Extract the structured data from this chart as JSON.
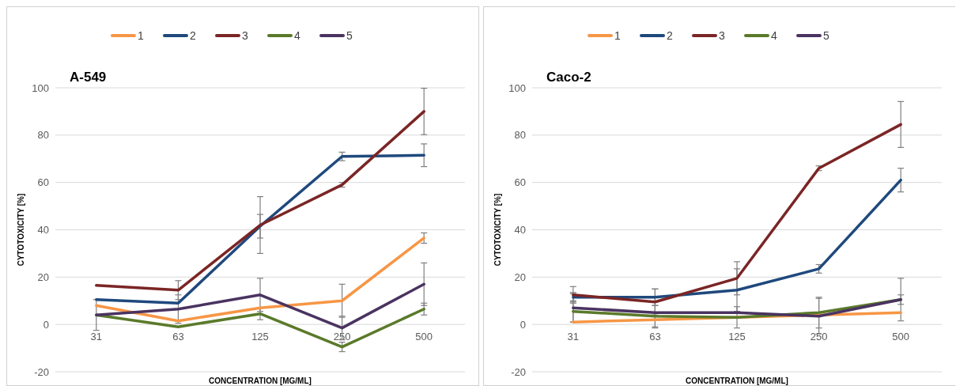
{
  "chart_data": [
    {
      "type": "line",
      "title": "A-549",
      "xlabel": "CONCENTRATION [MG/ML]",
      "ylabel": "CYTOTOXICITY [%]",
      "categories": [
        "31",
        "63",
        "125",
        "250",
        "500"
      ],
      "ylim": [
        -20,
        100
      ],
      "yticks": [
        -20,
        0,
        20,
        40,
        60,
        80,
        100
      ],
      "grid": "y",
      "legend": "top",
      "marker": "none",
      "line_style": "solid",
      "series": [
        {
          "name": "1",
          "color": "#f79646",
          "values": [
            8,
            1.5,
            7,
            10,
            36.5
          ],
          "errors": [
            null,
            null,
            null,
            7,
            2.2
          ]
        },
        {
          "name": "2",
          "color": "#1f497d",
          "values": [
            10.5,
            9,
            41.5,
            71,
            71.5
          ],
          "errors": [
            null,
            null,
            5,
            1.8,
            4.8
          ]
        },
        {
          "name": "3",
          "color": "#7b2525",
          "values": [
            16.5,
            14.5,
            42,
            59,
            90
          ],
          "errors": [
            null,
            4,
            12,
            1,
            9.8
          ]
        },
        {
          "name": "4",
          "color": "#5a7a2a",
          "values": [
            4,
            -1,
            4.5,
            -9.5,
            6.5
          ],
          "errors": [
            6.5,
            null,
            2.5,
            2,
            2.5
          ]
        },
        {
          "name": "5",
          "color": "#4a3360",
          "values": [
            4,
            6.5,
            12.5,
            -1.5,
            17
          ],
          "errors": [
            null,
            6,
            7,
            5,
            9
          ]
        }
      ]
    },
    {
      "type": "line",
      "title": "Caco-2",
      "xlabel": "CONCENTRATION [MG/ML]",
      "ylabel": "CYTOTOXICITY [%]",
      "categories": [
        "31",
        "63",
        "125",
        "250",
        "500"
      ],
      "ylim": [
        -20,
        100
      ],
      "yticks": [
        -20,
        0,
        20,
        40,
        60,
        80,
        100
      ],
      "grid": "y",
      "legend": "top",
      "marker": "none",
      "line_style": "solid",
      "series": [
        {
          "name": "1",
          "color": "#f79646",
          "values": [
            1,
            2,
            3,
            4,
            5
          ],
          "errors": [
            null,
            null,
            null,
            null,
            null
          ]
        },
        {
          "name": "2",
          "color": "#1f497d",
          "values": [
            11.5,
            11.5,
            14.5,
            23.5,
            61
          ],
          "errors": [
            2,
            3.5,
            9,
            1.8,
            5
          ]
        },
        {
          "name": "3",
          "color": "#7b2525",
          "values": [
            12.5,
            9.5,
            19.5,
            66,
            84.5
          ],
          "errors": [
            3.5,
            5.5,
            7,
            1,
            9.7
          ]
        },
        {
          "name": "4",
          "color": "#5a7a2a",
          "values": [
            5.5,
            3.5,
            3,
            5,
            10.5
          ],
          "errors": [
            4.5,
            4.5,
            4.5,
            6.5,
            2
          ]
        },
        {
          "name": "5",
          "color": "#4a3360",
          "values": [
            7,
            5,
            5,
            3.5,
            10.5
          ],
          "errors": [
            6,
            6.5,
            null,
            7.5,
            9
          ]
        }
      ]
    }
  ]
}
